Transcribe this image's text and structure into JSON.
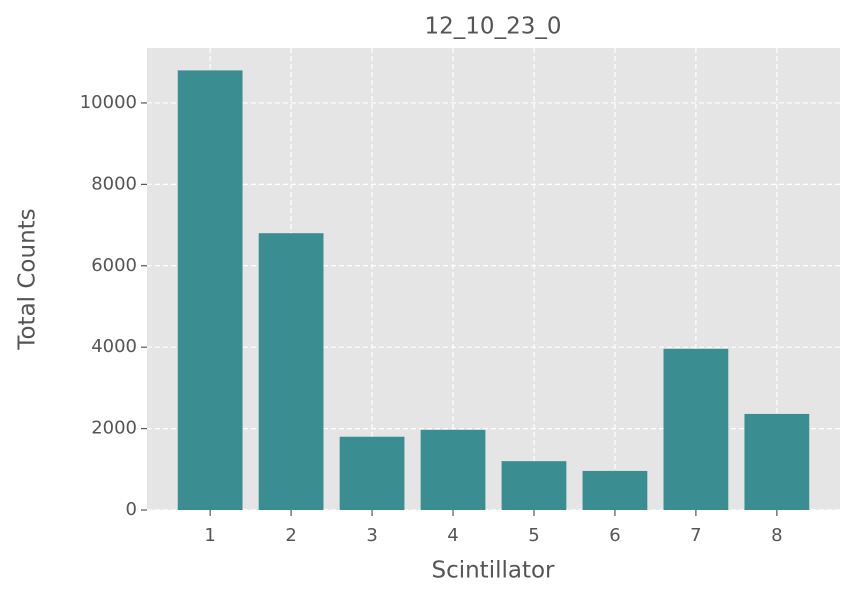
{
  "chart_data": {
    "type": "bar",
    "title": "12_10_23_0",
    "x_label": "Scintillator",
    "y_label": "Total Counts",
    "x": [
      1,
      2,
      3,
      4,
      5,
      6,
      7,
      8
    ],
    "values": [
      10800,
      6800,
      1800,
      1970,
      1200,
      960,
      3960,
      2360
    ],
    "color": "#3a8e91",
    "xlim": [
      0.22,
      8.78
    ],
    "xticks": [
      1,
      2,
      3,
      4,
      5,
      6,
      7,
      8
    ],
    "ylim": [
      0,
      11350
    ],
    "yticks": [
      0,
      2000,
      4000,
      6000,
      8000,
      10000
    ],
    "grid": true
  }
}
